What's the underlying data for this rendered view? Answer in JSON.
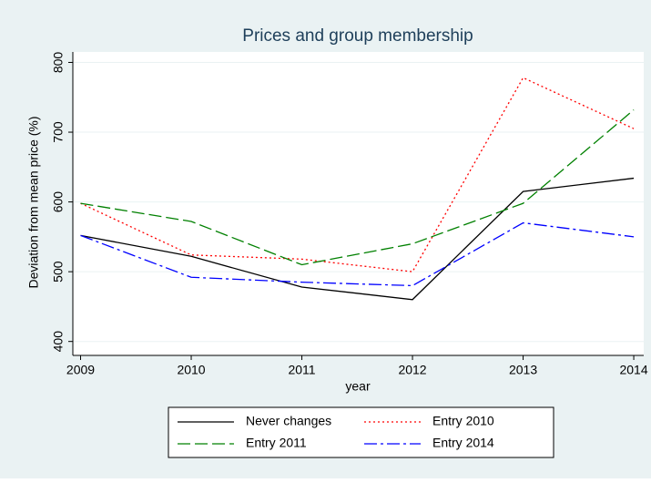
{
  "chart_data": {
    "type": "line",
    "title": "Prices and group membership",
    "x_label": "year",
    "y_label": "Deviation from mean price (%)",
    "x": [
      2009,
      2010,
      2011,
      2012,
      2013,
      2014
    ],
    "series": [
      {
        "name": "Never changes",
        "color": "#000000",
        "dash": "none",
        "values": [
          552,
          522,
          478,
          460,
          615,
          634
        ]
      },
      {
        "name": "Entry 2010",
        "color": "#ff0000",
        "dash": "2,3",
        "values": [
          598,
          524,
          518,
          500,
          778,
          705
        ]
      },
      {
        "name": "Entry 2011",
        "color": "#008000",
        "dash": "14,5",
        "values": [
          598,
          572,
          510,
          540,
          598,
          732
        ]
      },
      {
        "name": "Entry 2014",
        "color": "#0000ff",
        "dash": "14,4,3,4",
        "values": [
          552,
          492,
          485,
          480,
          570,
          550
        ]
      }
    ],
    "xlim": [
      2008.93,
      2014.09
    ],
    "xticks": [
      2009,
      2010,
      2011,
      2012,
      2013,
      2014
    ],
    "ylim": [
      380,
      815
    ],
    "yticks": [
      400,
      500,
      600,
      700,
      800
    ],
    "grid": true
  }
}
